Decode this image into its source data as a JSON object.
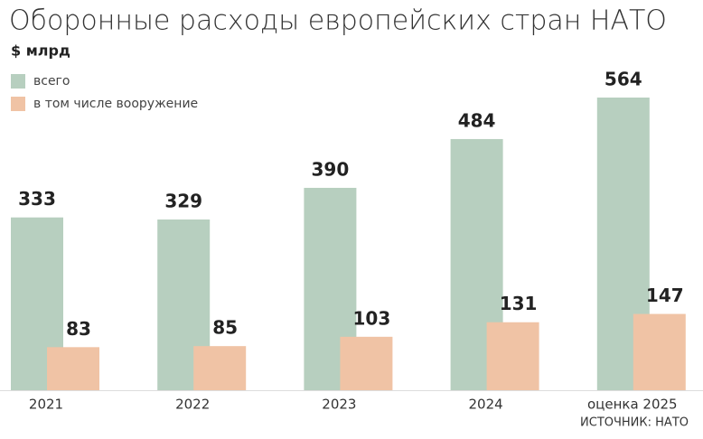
{
  "chart_data": {
    "type": "bar",
    "title": "Оборонные расходы европейских стран НАТО",
    "subtitle": "$ млрд",
    "categories": [
      "2021",
      "2022",
      "2023",
      "2024",
      "оценка 2025"
    ],
    "series": [
      {
        "name": "всего",
        "color": "#b7cfbf",
        "values": [
          333,
          329,
          390,
          484,
          564
        ]
      },
      {
        "name": "в том числе вооружение",
        "color": "#f0c3a5",
        "values": [
          83,
          85,
          103,
          131,
          147
        ]
      }
    ],
    "source": "ИСТОЧНИК: НАТО"
  }
}
